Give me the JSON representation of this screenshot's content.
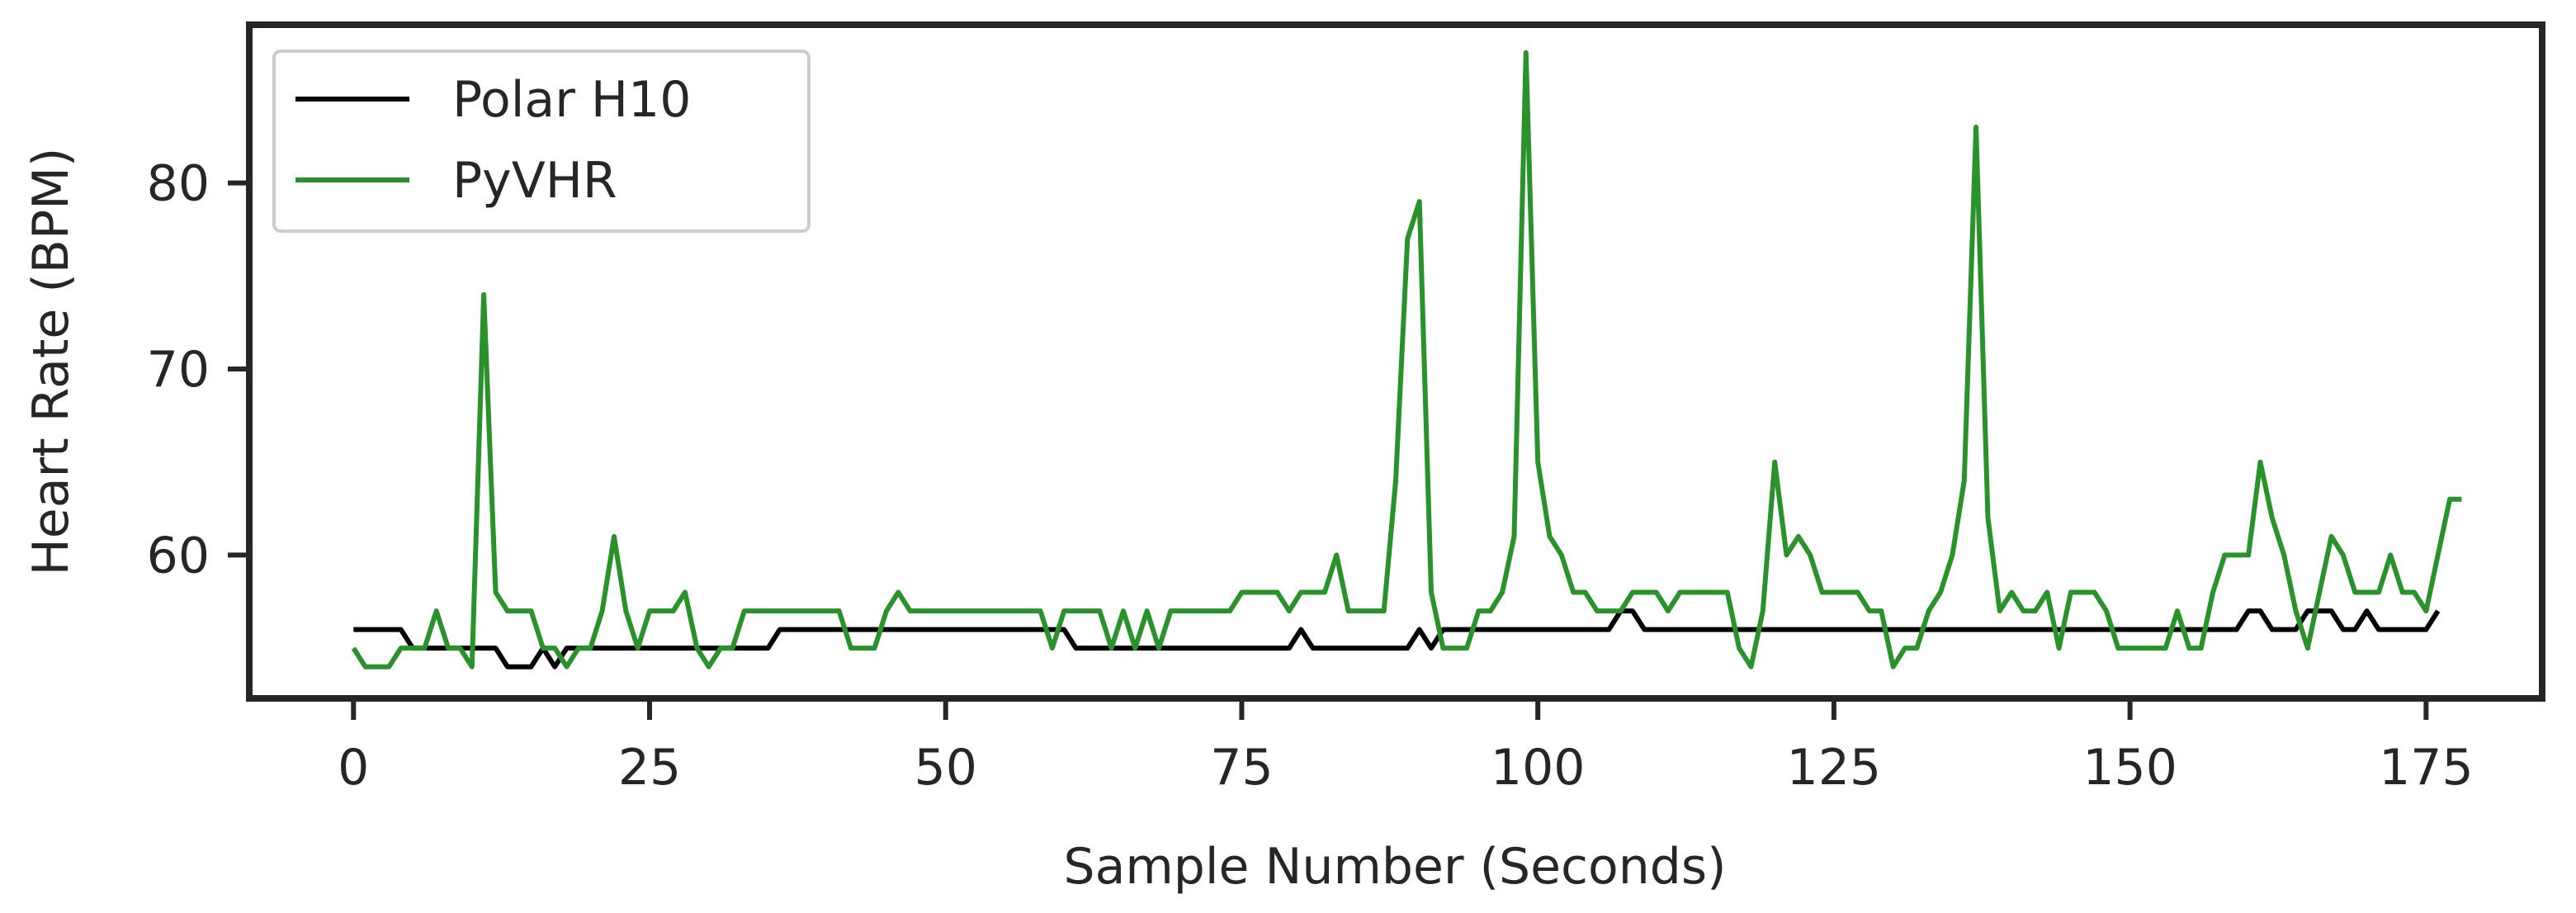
{
  "chart_data": {
    "type": "line",
    "title": "",
    "xlabel": "Sample Number (Seconds)",
    "ylabel": "Heart Rate (BPM)",
    "xlim": [
      -8.8,
      184.8
    ],
    "ylim": [
      52.3,
      88.5
    ],
    "xticks": [
      0,
      25,
      50,
      75,
      100,
      125,
      150,
      175
    ],
    "yticks": [
      60,
      70,
      80
    ],
    "grid": false,
    "legend": "top-left",
    "series": [
      {
        "name": "Polar H10",
        "color": "#000000",
        "values": [
          56,
          56,
          56,
          56,
          56,
          55,
          55,
          55,
          55,
          55,
          55,
          55,
          55,
          54,
          54,
          54,
          55,
          54,
          55,
          55,
          55,
          55,
          55,
          55,
          55,
          55,
          55,
          55,
          55,
          55,
          55,
          55,
          55,
          55,
          55,
          55,
          56,
          56,
          56,
          56,
          56,
          56,
          56,
          56,
          56,
          56,
          56,
          56,
          56,
          56,
          56,
          56,
          56,
          56,
          56,
          56,
          56,
          56,
          56,
          56,
          56,
          55,
          55,
          55,
          55,
          55,
          55,
          55,
          55,
          55,
          55,
          55,
          55,
          55,
          55,
          55,
          55,
          55,
          55,
          55,
          56,
          55,
          55,
          55,
          55,
          55,
          55,
          55,
          55,
          55,
          56,
          55,
          56,
          56,
          56,
          56,
          56,
          56,
          56,
          56,
          56,
          56,
          56,
          56,
          56,
          56,
          56,
          57,
          57,
          56,
          56,
          56,
          56,
          56,
          56,
          56,
          56,
          56,
          56,
          56,
          56,
          56,
          56,
          56,
          56,
          56,
          56,
          56,
          56,
          56,
          56,
          56,
          56,
          56,
          56,
          56,
          56,
          56,
          56,
          56,
          56,
          56,
          56,
          56,
          56,
          56,
          56,
          56,
          56,
          56,
          56,
          56,
          56,
          56,
          56,
          56,
          56,
          56,
          56,
          56,
          57,
          57,
          56,
          56,
          56,
          57,
          57,
          57,
          56,
          56,
          57,
          56,
          56,
          56,
          56,
          56,
          57
        ]
      },
      {
        "name": "PyVHR",
        "color": "#2a922a",
        "values": [
          55,
          54,
          54,
          54,
          55,
          55,
          55,
          57,
          55,
          55,
          54,
          74,
          58,
          57,
          57,
          57,
          55,
          55,
          54,
          55,
          55,
          57,
          61,
          57,
          55,
          57,
          57,
          57,
          58,
          55,
          54,
          55,
          55,
          57,
          57,
          57,
          57,
          57,
          57,
          57,
          57,
          57,
          55,
          55,
          55,
          57,
          58,
          57,
          57,
          57,
          57,
          57,
          57,
          57,
          57,
          57,
          57,
          57,
          57,
          55,
          57,
          57,
          57,
          57,
          55,
          57,
          55,
          57,
          55,
          57,
          57,
          57,
          57,
          57,
          57,
          58,
          58,
          58,
          58,
          57,
          58,
          58,
          58,
          60,
          57,
          57,
          57,
          57,
          64,
          77,
          79,
          58,
          55,
          55,
          55,
          57,
          57,
          58,
          61,
          87,
          65,
          61,
          60,
          58,
          58,
          57,
          57,
          57,
          58,
          58,
          58,
          57,
          58,
          58,
          58,
          58,
          58,
          55,
          54,
          57,
          65,
          60,
          61,
          60,
          58,
          58,
          58,
          58,
          57,
          57,
          54,
          55,
          55,
          57,
          58,
          60,
          64,
          83,
          62,
          57,
          58,
          57,
          57,
          58,
          55,
          58,
          58,
          58,
          57,
          55,
          55,
          55,
          55,
          55,
          57,
          55,
          55,
          58,
          60,
          60,
          60,
          65,
          62,
          60,
          57,
          55,
          58,
          61,
          60,
          58,
          58,
          58,
          60,
          58,
          58,
          57,
          60,
          63,
          63
        ]
      }
    ]
  }
}
